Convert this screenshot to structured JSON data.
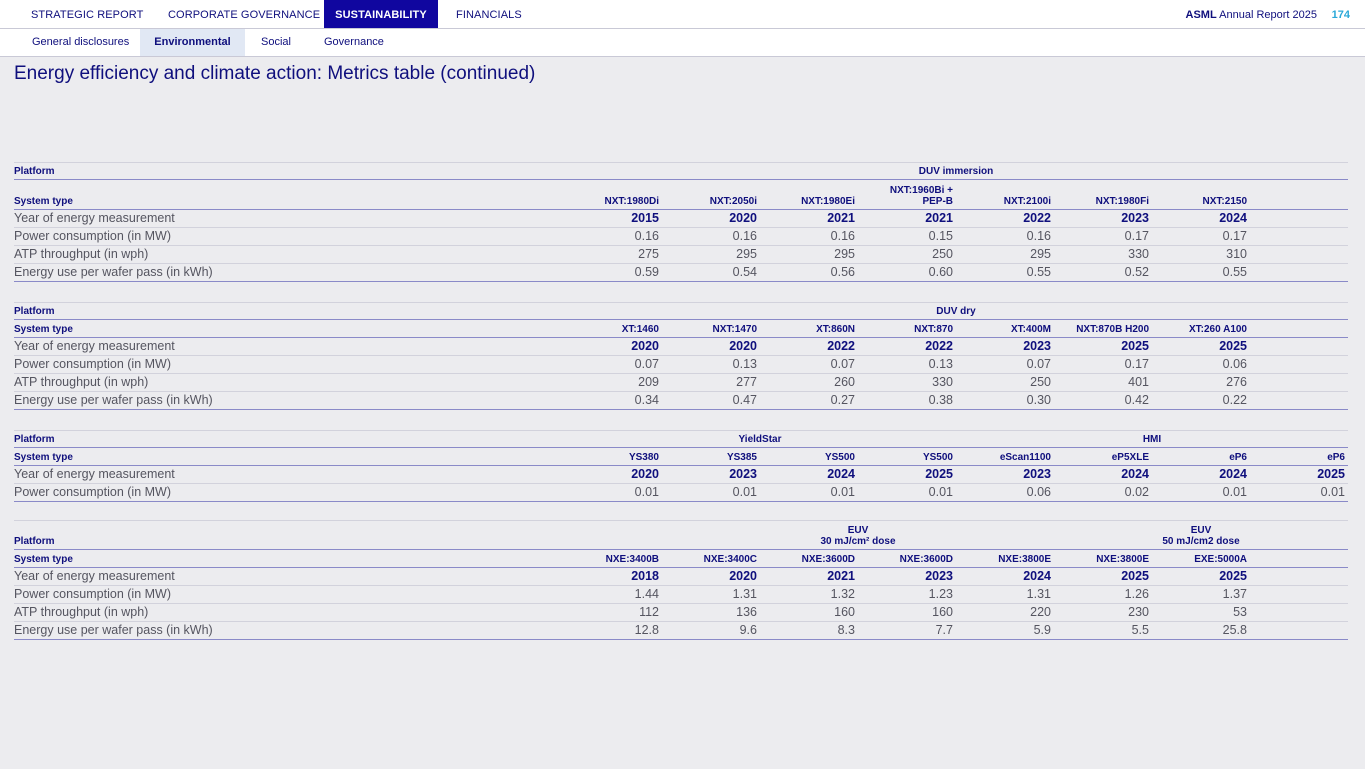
{
  "topnav": {
    "tabs": [
      {
        "label": "STRATEGIC REPORT"
      },
      {
        "label": "CORPORATE GOVERNANCE"
      },
      {
        "label": "SUSTAINABILITY",
        "active": true
      },
      {
        "label": "FINANCIALS"
      }
    ],
    "brand": {
      "bold": "ASML",
      "text": "Annual Report 2025"
    },
    "page_number": "174"
  },
  "subnav": {
    "tabs": [
      {
        "label": "General disclosures"
      },
      {
        "label": "Environmental",
        "active": true
      },
      {
        "label": "Social"
      },
      {
        "label": "Governance"
      }
    ]
  },
  "title": "Energy efficiency and climate action: Metrics table (continued)",
  "row_labels": {
    "platform": "Platform",
    "system_type": "System type",
    "year": "Year of energy measurement",
    "power": "Power consumption (in MW)",
    "atp": "ATP throughput (in wph)",
    "energy": "Energy use per wafer pass (in kWh)"
  },
  "tables": [
    {
      "groups": [
        {
          "label": "DUV immersion"
        }
      ],
      "system_types": [
        "NXT:1980Di",
        "NXT:2050i",
        "NXT:1980Ei",
        "NXT:1960Bi +\nPEP-B",
        "NXT:2100i",
        "NXT:1980Fi",
        "NXT:2150"
      ],
      "year": [
        "2015",
        "2020",
        "2021",
        "2021",
        "2022",
        "2023",
        "2024"
      ],
      "power": [
        "0.16",
        "0.16",
        "0.16",
        "0.15",
        "0.16",
        "0.17",
        "0.17"
      ],
      "atp": [
        "275",
        "295",
        "295",
        "250",
        "295",
        "330",
        "310"
      ],
      "energy": [
        "0.59",
        "0.54",
        "0.56",
        "0.60",
        "0.55",
        "0.52",
        "0.55"
      ]
    },
    {
      "groups": [
        {
          "label": "DUV dry"
        }
      ],
      "system_types": [
        "XT:1460",
        "NXT:1470",
        "XT:860N",
        "NXT:870",
        "XT:400M",
        "NXT:870B H200",
        "XT:260 A100"
      ],
      "year": [
        "2020",
        "2020",
        "2022",
        "2022",
        "2023",
        "2025",
        "2025"
      ],
      "power": [
        "0.07",
        "0.13",
        "0.07",
        "0.13",
        "0.07",
        "0.17",
        "0.06"
      ],
      "atp": [
        "209",
        "277",
        "260",
        "330",
        "250",
        "401",
        "276"
      ],
      "energy": [
        "0.34",
        "0.47",
        "0.27",
        "0.38",
        "0.30",
        "0.42",
        "0.22"
      ]
    },
    {
      "groups": [
        {
          "label": "YieldStar"
        },
        {
          "label": "HMI"
        }
      ],
      "system_types": [
        "YS380",
        "YS385",
        "YS500",
        "YS500",
        "eScan1100",
        "eP5XLE",
        "eP6",
        "eP6"
      ],
      "year": [
        "2020",
        "2023",
        "2024",
        "2025",
        "2023",
        "2024",
        "2024",
        "2025"
      ],
      "power": [
        "0.01",
        "0.01",
        "0.01",
        "0.01",
        "0.06",
        "0.02",
        "0.01",
        "0.01"
      ]
    },
    {
      "groups": [
        {
          "label": "EUV\n30 mJ/cm² dose"
        },
        {
          "label": "EUV\n50 mJ/cm2 dose"
        }
      ],
      "system_types": [
        "NXE:3400B",
        "NXE:3400C",
        "NXE:3600D",
        "NXE:3600D",
        "NXE:3800E",
        "NXE:3800E",
        "EXE:5000A"
      ],
      "year": [
        "2018",
        "2020",
        "2021",
        "2023",
        "2024",
        "2025",
        "2025"
      ],
      "power": [
        "1.44",
        "1.31",
        "1.32",
        "1.23",
        "1.31",
        "1.26",
        "1.37"
      ],
      "atp": [
        "112",
        "136",
        "160",
        "160",
        "220",
        "230",
        "53"
      ],
      "energy": [
        "12.8",
        "9.6",
        "8.3",
        "7.7",
        "5.9",
        "5.5",
        "25.8"
      ]
    }
  ]
}
